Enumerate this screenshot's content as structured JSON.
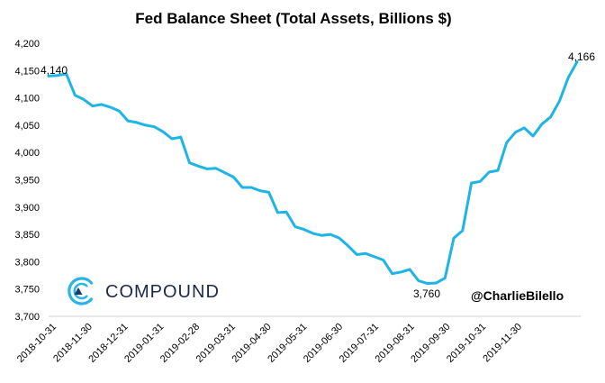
{
  "chart_data": {
    "type": "line",
    "title": "Fed Balance Sheet (Total Assets, Billions $)",
    "xlabel": "",
    "ylabel": "",
    "ylim": [
      3700,
      4200
    ],
    "y_ticks": [
      "3,700",
      "3,750",
      "3,800",
      "3,850",
      "3,900",
      "3,950",
      "4,000",
      "4,050",
      "4,100",
      "4,150",
      "4,200"
    ],
    "x_tick_labels": [
      "2018-10-31",
      "2018-11-30",
      "2018-12-31",
      "2019-01-31",
      "2019-02-28",
      "2019-03-31",
      "2019-04-30",
      "2019-05-31",
      "2019-06-30",
      "2019-07-31",
      "2019-08-31",
      "2019-09-30",
      "2019-10-31",
      "2019-11-30"
    ],
    "grid": false,
    "color": "#1fb4e6",
    "series": [
      {
        "name": "Fed Balance Sheet",
        "values": [
          4140,
          4141,
          4144,
          4105,
          4097,
          4085,
          4088,
          4083,
          4076,
          4058,
          4055,
          4050,
          4047,
          4038,
          4025,
          4028,
          3981,
          3975,
          3970,
          3971,
          3963,
          3955,
          3936,
          3936,
          3930,
          3927,
          3890,
          3891,
          3864,
          3859,
          3852,
          3848,
          3850,
          3843,
          3829,
          3813,
          3815,
          3809,
          3803,
          3778,
          3781,
          3786,
          3765,
          3760,
          3761,
          3770,
          3843,
          3857,
          3944,
          3947,
          3964,
          3967,
          4018,
          4037,
          4045,
          4030,
          4052,
          4065,
          4094,
          4137,
          4166
        ]
      }
    ],
    "annotations": {
      "start": "4,140",
      "min": "3,760",
      "end": "4,166"
    }
  },
  "logo": {
    "name": "COMPOUND"
  },
  "watermark": "@CharlieBilello"
}
